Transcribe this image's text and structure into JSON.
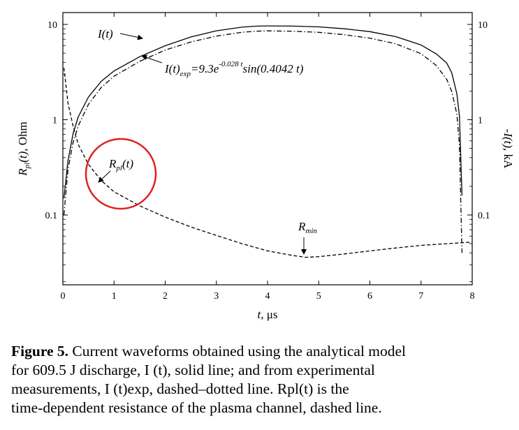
{
  "chart_data": {
    "type": "line",
    "y_scale": "log",
    "x_range": [
      0,
      8
    ],
    "y_range": [
      0.02,
      12
    ],
    "x_ticks": [
      "0",
      "1",
      "2",
      "3",
      "4",
      "5",
      "6",
      "7",
      "8"
    ],
    "y_ticks": [
      "10",
      "1",
      "0.1"
    ],
    "right_ticks": [
      "10",
      "1",
      "0.1"
    ],
    "xlabel": "t, μs",
    "ylabel_left": "Rpl(t), Ohm",
    "ylabel_right": "-I(t), kA",
    "series": [
      {
        "name": "I(t)",
        "style": "solid",
        "x": [
          0.02,
          0.1,
          0.2,
          0.3,
          0.5,
          0.75,
          1.0,
          1.5,
          2.0,
          2.5,
          3.0,
          3.5,
          3.8,
          4.0,
          4.5,
          5.0,
          5.5,
          6.0,
          6.5,
          7.0,
          7.3,
          7.5,
          7.6,
          7.7,
          7.75,
          7.8
        ],
        "y": [
          0.15,
          0.37,
          0.72,
          1.07,
          1.73,
          2.53,
          3.25,
          4.58,
          5.98,
          7.38,
          8.57,
          9.36,
          9.6,
          9.65,
          9.6,
          9.42,
          9.0,
          8.41,
          7.46,
          6.09,
          4.9,
          3.95,
          3.11,
          1.88,
          1.1,
          0.16
        ]
      },
      {
        "name": "I(t)exp = 9.3e^(-0.028 t) sin(0.4042 t)",
        "style": "dash-dot",
        "x": [
          0.02,
          0.1,
          0.2,
          0.3,
          0.5,
          0.75,
          1.0,
          1.5,
          2.0,
          2.5,
          3.0,
          3.5,
          3.8,
          4.0,
          4.5,
          5.0,
          5.5,
          6.0,
          6.5,
          7.0,
          7.3,
          7.5,
          7.6,
          7.7,
          7.75,
          7.8
        ],
        "y": [
          0.1,
          0.3,
          0.58,
          0.86,
          1.45,
          2.18,
          2.86,
          4.1,
          5.38,
          6.54,
          7.55,
          8.28,
          8.5,
          8.56,
          8.48,
          8.26,
          7.8,
          7.17,
          6.28,
          4.93,
          3.7,
          2.66,
          1.98,
          1.15,
          0.55,
          0.04
        ]
      },
      {
        "name": "Rpl(t)",
        "style": "dashed",
        "x": [
          0.02,
          0.1,
          0.2,
          0.3,
          0.5,
          0.75,
          1.0,
          1.5,
          2.0,
          2.5,
          3.0,
          3.5,
          4.0,
          4.5,
          4.75,
          5.0,
          5.5,
          6.0,
          6.5,
          7.0,
          7.5,
          8.0
        ],
        "y": [
          3.5,
          1.5,
          0.85,
          0.55,
          0.34,
          0.23,
          0.175,
          0.125,
          0.095,
          0.075,
          0.061,
          0.05,
          0.042,
          0.0375,
          0.036,
          0.0365,
          0.039,
          0.042,
          0.045,
          0.048,
          0.05,
          0.052
        ]
      }
    ],
    "annotations": {
      "current_label": "I(t)",
      "exp_label_main": "I(t)",
      "exp_label_sub": "exp",
      "exp_label_eq": "=9.3e",
      "exp_label_sup": "-0.028 t",
      "exp_label_tail": "sin(0.4042 t)",
      "r_label_main": "R",
      "r_label_sub": "pl",
      "r_label_tail": "(t)",
      "rmin_main": "R",
      "rmin_sub": "min"
    },
    "highlight": {
      "shape": "circle",
      "color": "#e02020",
      "target": "Rpl(t)"
    }
  },
  "caption": {
    "label": "Figure 5.",
    "lines": [
      "Current waveforms obtained using the analytical model",
      "for 609.5 J discharge, I (t), solid line; and from experimental",
      "measurements, I (t)exp, dashed–dotted line. Rpl(t) is the",
      "time-dependent resistance of the plasma channel, dashed line."
    ]
  }
}
